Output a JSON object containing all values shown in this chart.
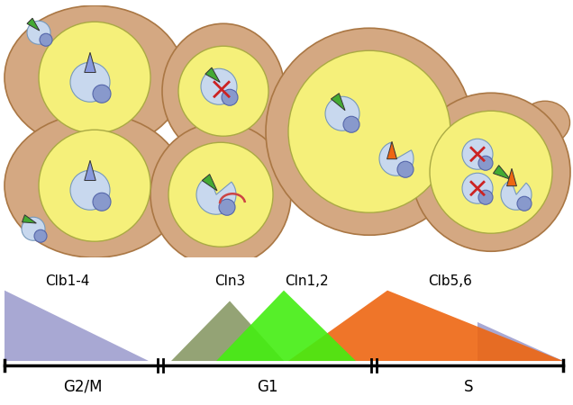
{
  "bg_color": "#ffffff",
  "cell_outer_color": "#d4a882",
  "cell_inner_color": "#f5f07a",
  "nucleus_color": "#c8d8ee",
  "cdk_color": "#8899cc",
  "cyclin_green_color": "#44aa33",
  "cyclin_orange_color": "#ee6611",
  "cyclin_blue_color": "#8899dd",
  "cross_color": "#cc2222",
  "bar_blue_color": "#9999cc",
  "bar_olive_color": "#889966",
  "bar_green_color": "#44ee11",
  "bar_orange_color": "#ee6611",
  "labels": [
    "Clb1-4",
    "Cln3",
    "Cln1,2",
    "Clb5,6"
  ],
  "phase_labels": [
    "G2/M",
    "G1",
    "S"
  ],
  "title_fontsize": 11
}
